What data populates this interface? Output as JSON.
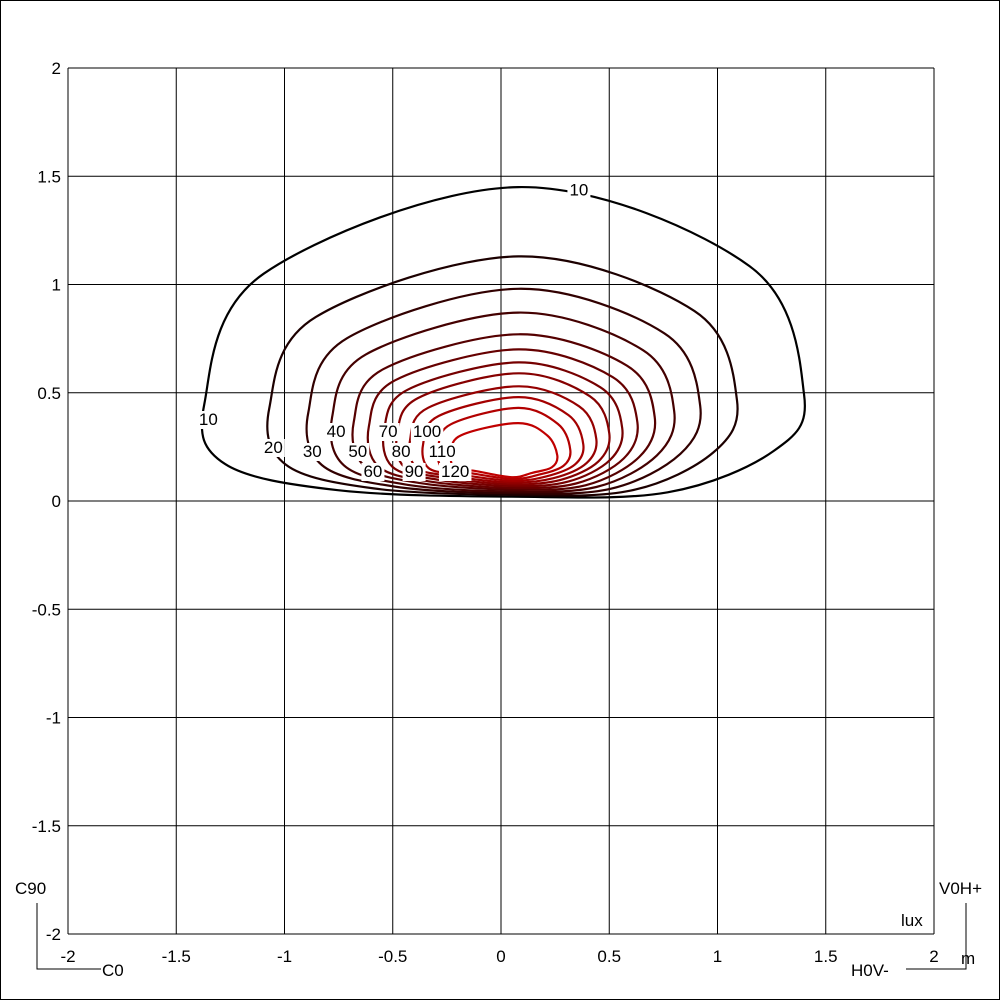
{
  "chart_data": {
    "type": "contour",
    "title": "",
    "xlabel": "m",
    "unit_label": "lux",
    "xlim": [
      -2,
      2
    ],
    "ylim": [
      -2,
      2
    ],
    "x_ticks": [
      "-2",
      "-1.5",
      "-1",
      "-0.5",
      "0",
      "0.5",
      "1",
      "1.5",
      "2"
    ],
    "y_ticks": [
      "2",
      "1.5",
      "1",
      "0.5",
      "0",
      "-0.5",
      "-1",
      "-1.5",
      "-2"
    ],
    "grid": true,
    "corner_labels": {
      "c90": "C90",
      "c0": "C0",
      "v0h_plus": "V0H+",
      "h0v_minus": "H0V-"
    },
    "colors": {
      "low": "#000000",
      "high": "#c00000",
      "grid": "#000000"
    },
    "contours": [
      {
        "level": 10,
        "label": "10",
        "top": 1.45,
        "left": -1.37,
        "right": 1.4
      },
      {
        "level": 20,
        "label": "20",
        "top": 1.13,
        "left": -1.07,
        "right": 1.09
      },
      {
        "level": 30,
        "label": "30",
        "top": 0.98,
        "left": -0.89,
        "right": 0.92
      },
      {
        "level": 40,
        "label": "40",
        "top": 0.87,
        "left": -0.78,
        "right": 0.8
      },
      {
        "level": 50,
        "label": "50",
        "top": 0.77,
        "left": -0.68,
        "right": 0.71
      },
      {
        "level": 60,
        "label": "60",
        "top": 0.7,
        "left": -0.61,
        "right": 0.63
      },
      {
        "level": 70,
        "label": "70",
        "top": 0.64,
        "left": -0.54,
        "right": 0.56
      },
      {
        "level": 80,
        "label": "80",
        "top": 0.59,
        "left": -0.48,
        "right": 0.5
      },
      {
        "level": 90,
        "label": "90",
        "top": 0.53,
        "left": -0.42,
        "right": 0.44
      },
      {
        "level": 100,
        "label": "100",
        "top": 0.48,
        "left": -0.36,
        "right": 0.38
      },
      {
        "level": 110,
        "label": "110",
        "top": 0.43,
        "left": -0.29,
        "right": 0.32
      },
      {
        "level": 120,
        "label": "120",
        "top": 0.36,
        "left": -0.23,
        "right": 0.26
      }
    ]
  }
}
